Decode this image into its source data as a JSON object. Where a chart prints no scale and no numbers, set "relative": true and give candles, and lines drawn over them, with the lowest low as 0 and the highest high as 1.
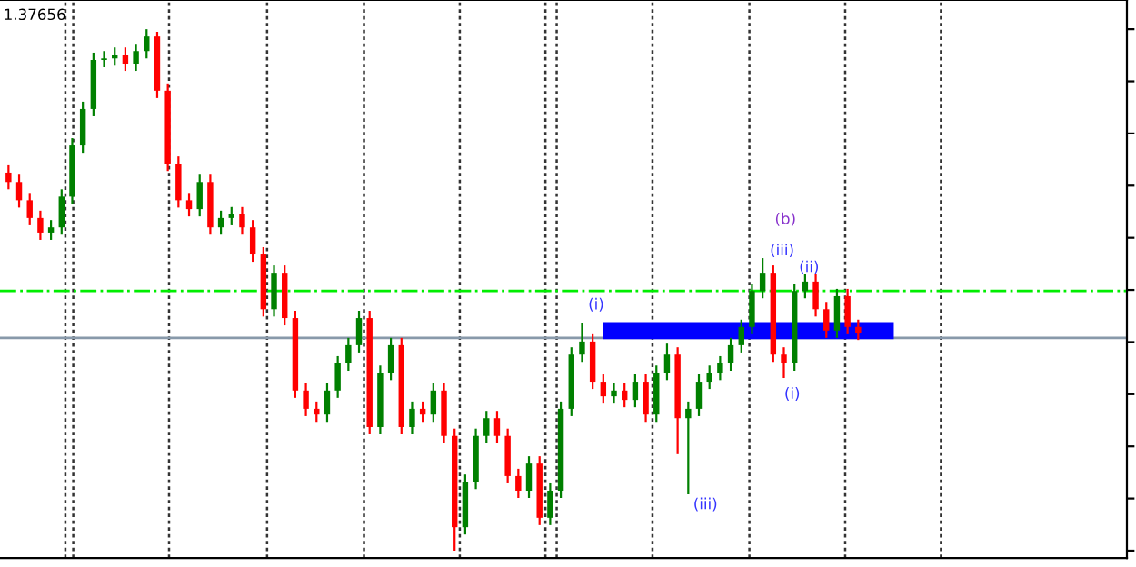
{
  "chart_data": {
    "type": "candlestick",
    "relative": true,
    "tick_labels": false,
    "grid": false,
    "legend": false,
    "categories": [
      null,
      null,
      null,
      null,
      null,
      null,
      null,
      null,
      null,
      null,
      null,
      null,
      null,
      null,
      null,
      null,
      null,
      null,
      null,
      null,
      null,
      null,
      null,
      null,
      null,
      null,
      null,
      null,
      null,
      null,
      null,
      null,
      null,
      null,
      null,
      null,
      null,
      null,
      null,
      null,
      null,
      null,
      null,
      null,
      null,
      null,
      null,
      null,
      null,
      null,
      null,
      null,
      null,
      null,
      null,
      null,
      null,
      null,
      null,
      null,
      null,
      null,
      null,
      null,
      null,
      null,
      null,
      null,
      null,
      null,
      null,
      null,
      null,
      null,
      null,
      null,
      null,
      null,
      null,
      null,
      null
    ],
    "ohlc": [
      [
        0.725,
        0.739,
        0.693,
        0.707
      ],
      [
        0.707,
        0.721,
        0.658,
        0.672
      ],
      [
        0.672,
        0.686,
        0.624,
        0.638
      ],
      [
        0.638,
        0.652,
        0.596,
        0.61
      ],
      [
        0.61,
        0.634,
        0.596,
        0.62
      ],
      [
        0.62,
        0.693,
        0.606,
        0.679
      ],
      [
        0.679,
        0.791,
        0.665,
        0.777
      ],
      [
        0.777,
        0.861,
        0.763,
        0.847
      ],
      [
        0.847,
        0.955,
        0.833,
        0.941
      ],
      [
        0.941,
        0.958,
        0.927,
        0.944
      ],
      [
        0.944,
        0.965,
        0.93,
        0.951
      ],
      [
        0.951,
        0.965,
        0.92,
        0.934
      ],
      [
        0.934,
        0.972,
        0.92,
        0.958
      ],
      [
        0.958,
        1.0,
        0.944,
        0.986
      ],
      [
        0.986,
        0.995,
        0.868,
        0.882
      ],
      [
        0.882,
        0.896,
        0.728,
        0.742
      ],
      [
        0.742,
        0.756,
        0.658,
        0.672
      ],
      [
        0.672,
        0.686,
        0.641,
        0.655
      ],
      [
        0.655,
        0.721,
        0.641,
        0.707
      ],
      [
        0.707,
        0.721,
        0.606,
        0.62
      ],
      [
        0.62,
        0.652,
        0.606,
        0.638
      ],
      [
        0.638,
        0.659,
        0.624,
        0.645
      ],
      [
        0.645,
        0.659,
        0.606,
        0.62
      ],
      [
        0.62,
        0.634,
        0.554,
        0.568
      ],
      [
        0.568,
        0.582,
        0.449,
        0.463
      ],
      [
        0.463,
        0.547,
        0.449,
        0.533
      ],
      [
        0.533,
        0.547,
        0.432,
        0.446
      ],
      [
        0.446,
        0.46,
        0.293,
        0.307
      ],
      [
        0.307,
        0.321,
        0.258,
        0.272
      ],
      [
        0.272,
        0.286,
        0.247,
        0.261
      ],
      [
        0.261,
        0.321,
        0.247,
        0.307
      ],
      [
        0.307,
        0.373,
        0.293,
        0.359
      ],
      [
        0.359,
        0.408,
        0.345,
        0.394
      ],
      [
        0.394,
        0.46,
        0.38,
        0.446
      ],
      [
        0.446,
        0.46,
        0.223,
        0.237
      ],
      [
        0.237,
        0.355,
        0.223,
        0.341
      ],
      [
        0.341,
        0.408,
        0.327,
        0.394
      ],
      [
        0.394,
        0.408,
        0.223,
        0.237
      ],
      [
        0.237,
        0.286,
        0.223,
        0.272
      ],
      [
        0.272,
        0.286,
        0.247,
        0.261
      ],
      [
        0.261,
        0.321,
        0.247,
        0.307
      ],
      [
        0.307,
        0.321,
        0.206,
        0.22
      ],
      [
        0.22,
        0.234,
        0.0,
        0.045
      ],
      [
        0.045,
        0.146,
        0.031,
        0.132
      ],
      [
        0.132,
        0.234,
        0.118,
        0.22
      ],
      [
        0.22,
        0.268,
        0.206,
        0.254
      ],
      [
        0.254,
        0.268,
        0.206,
        0.22
      ],
      [
        0.22,
        0.234,
        0.129,
        0.143
      ],
      [
        0.143,
        0.157,
        0.101,
        0.115
      ],
      [
        0.115,
        0.181,
        0.101,
        0.167
      ],
      [
        0.167,
        0.181,
        0.049,
        0.063
      ],
      [
        0.063,
        0.129,
        0.049,
        0.115
      ],
      [
        0.115,
        0.286,
        0.101,
        0.272
      ],
      [
        0.272,
        0.39,
        0.258,
        0.376
      ],
      [
        0.376,
        0.436,
        0.362,
        0.401
      ],
      [
        0.401,
        0.415,
        0.31,
        0.324
      ],
      [
        0.324,
        0.338,
        0.282,
        0.296
      ],
      [
        0.296,
        0.321,
        0.282,
        0.307
      ],
      [
        0.307,
        0.321,
        0.275,
        0.289
      ],
      [
        0.289,
        0.338,
        0.275,
        0.324
      ],
      [
        0.324,
        0.338,
        0.247,
        0.261
      ],
      [
        0.261,
        0.355,
        0.247,
        0.341
      ],
      [
        0.341,
        0.397,
        0.327,
        0.376
      ],
      [
        0.376,
        0.39,
        0.185,
        0.254
      ],
      [
        0.254,
        0.286,
        0.108,
        0.272
      ],
      [
        0.272,
        0.338,
        0.258,
        0.324
      ],
      [
        0.324,
        0.355,
        0.31,
        0.341
      ],
      [
        0.341,
        0.373,
        0.327,
        0.359
      ],
      [
        0.359,
        0.408,
        0.345,
        0.394
      ],
      [
        0.394,
        0.443,
        0.38,
        0.429
      ],
      [
        0.429,
        0.512,
        0.415,
        0.498
      ],
      [
        0.498,
        0.561,
        0.484,
        0.533
      ],
      [
        0.533,
        0.547,
        0.362,
        0.376
      ],
      [
        0.376,
        0.39,
        0.331,
        0.359
      ],
      [
        0.359,
        0.512,
        0.345,
        0.498
      ],
      [
        0.498,
        0.53,
        0.484,
        0.516
      ],
      [
        0.516,
        0.53,
        0.449,
        0.463
      ],
      [
        0.463,
        0.477,
        0.408,
        0.422
      ],
      [
        0.422,
        0.502,
        0.408,
        0.488
      ],
      [
        0.488,
        0.502,
        0.415,
        0.429
      ],
      [
        0.429,
        0.443,
        0.404,
        0.418
      ]
    ],
    "ref_lines": [
      {
        "axis": "y",
        "value": 0.498,
        "color": "#00ee00",
        "line_style": "dashdot"
      },
      {
        "axis": "y",
        "value": 0.408,
        "color": "#8899aa",
        "line_style": "solid"
      }
    ],
    "bands": [
      {
        "axis": "y",
        "from": 0.408,
        "to": 0.436,
        "color": "#0000ff"
      }
    ],
    "annotations": [
      "1.37656",
      "(i)",
      "(iii)",
      "(b)",
      "(iii)",
      "(ii)",
      "(i)"
    ]
  }
}
